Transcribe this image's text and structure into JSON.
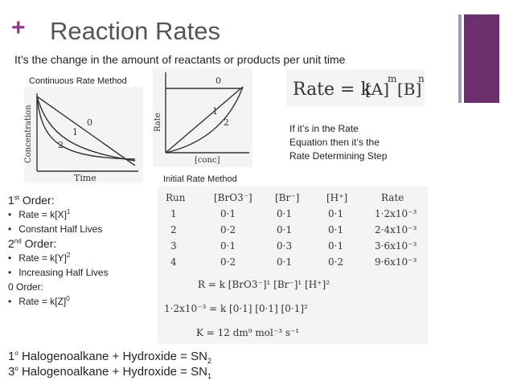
{
  "header": {
    "plus": "+",
    "title": "Reaction Rates",
    "subtitle": "It’s the change in the amount of reactants or products per unit time"
  },
  "captions": {
    "continuous": "Continuous Rate Method",
    "initial": "Initial Rate Method"
  },
  "graph1": {
    "ylabel": "Concentration",
    "xlabel": "Time",
    "curve_labels": [
      "0",
      "1",
      "2"
    ]
  },
  "graph2": {
    "ylabel": "Rate",
    "xlabel": "[conc]",
    "curve_labels": [
      "0",
      "1",
      "2"
    ]
  },
  "equation": {
    "lhs": "Rate = k",
    "a": "[A]",
    "m": "m",
    "b": "[B]",
    "n": "n"
  },
  "note": {
    "line1": "If it’s in the Rate",
    "line2": "Equation then it’s the",
    "line3": "Rate Determining Step"
  },
  "orders": {
    "first_num": "1",
    "first_sup": "st",
    "first_rest": " Order:",
    "first_rate": "Rate = k[X]",
    "first_rate_exp": "1",
    "first_half": "Constant Half Lives",
    "second_num": "2",
    "second_sup": "nd",
    "second_rest": " Order:",
    "second_rate": "Rate = k[Y]",
    "second_rate_exp": "2",
    "second_half": "Increasing Half Lives",
    "zero": "0 Order:",
    "zero_rate": "Rate = k[Z]",
    "zero_rate_exp": "0"
  },
  "initial_table": {
    "headers": [
      "Run",
      "[BrO3⁻]",
      "[Br⁻]",
      "[H⁺]",
      "Rate"
    ],
    "rows": [
      [
        "1",
        "0·1",
        "0·1",
        "0·1",
        "1·2x10⁻³"
      ],
      [
        "2",
        "0·2",
        "0·1",
        "0·1",
        "2·4x10⁻³"
      ],
      [
        "3",
        "0·1",
        "0·3",
        "0·1",
        "3·6x10⁻³"
      ],
      [
        "4",
        "0·2",
        "0·1",
        "0·2",
        "9·6x10⁻³"
      ]
    ],
    "line1": "R = k [BrO3⁻]¹ [Br⁻]¹ [H⁺]²",
    "line2": "1·2x10⁻³ = k [0·1] [0·1] [0·1]²",
    "line3": "K = 12 dm⁹ mol⁻³ s⁻¹"
  },
  "bottom": {
    "l1_deg": "1",
    "l1_sup": "o",
    "l1_text": " Halogenoalkane + Hydroxide = SN",
    "l1_sub": "2",
    "l2_deg": "3",
    "l2_sup": "o",
    "l2_text": " Halogenoalkane + Hydroxide = SN",
    "l2_sub": "1"
  },
  "colors": {
    "accent": "#6b2f6b",
    "plus": "#8e3a8d",
    "title": "#555555"
  }
}
